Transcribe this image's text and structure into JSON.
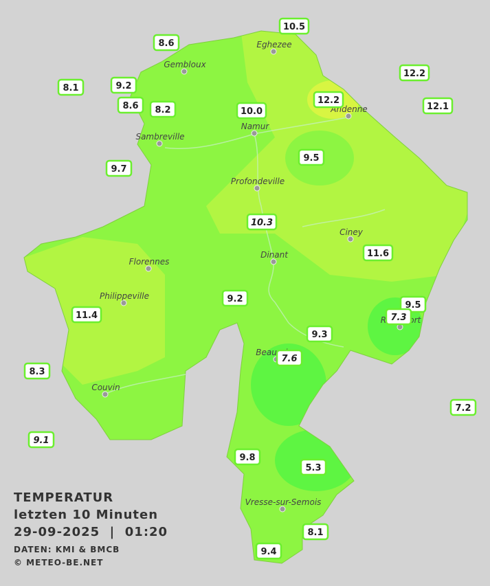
{
  "title": {
    "lines": [
      "TEMPERATUR",
      "letzten 10 Minuten",
      "29-09-2025  |  01:20"
    ]
  },
  "credits": [
    "DATEN: KMI & BMCB",
    "© METEO-BE.NET"
  ],
  "cities": [
    "Eghezee",
    "Gembloux",
    "Andenne",
    "Namur",
    "Sambreville",
    "Profondeville",
    "Ciney",
    "Dinant",
    "Florennes",
    "Philippeville",
    "Rochefort",
    "Beauraing",
    "Couvin",
    "Vresse-sur-Semois"
  ],
  "stations": [
    {
      "text": "10.5",
      "italic": false
    },
    {
      "text": "8.6",
      "italic": false
    },
    {
      "text": "12.2",
      "italic": false
    },
    {
      "text": "8.1",
      "italic": false
    },
    {
      "text": "9.2",
      "italic": false
    },
    {
      "text": "12.2",
      "italic": false
    },
    {
      "text": "12.1",
      "italic": false
    },
    {
      "text": "8.6",
      "italic": false
    },
    {
      "text": "8.2",
      "italic": false
    },
    {
      "text": "10.0",
      "italic": false
    },
    {
      "text": "9.5",
      "italic": false
    },
    {
      "text": "9.7",
      "italic": false
    },
    {
      "text": "10.3",
      "italic": true
    },
    {
      "text": "11.6",
      "italic": false
    },
    {
      "text": "9.2",
      "italic": false
    },
    {
      "text": "9.5",
      "italic": false
    },
    {
      "text": "11.4",
      "italic": false
    },
    {
      "text": "7.3",
      "italic": true
    },
    {
      "text": "9.3",
      "italic": false
    },
    {
      "text": "7.6",
      "italic": true
    },
    {
      "text": "8.3",
      "italic": false
    },
    {
      "text": "7.2",
      "italic": false
    },
    {
      "text": "9.1",
      "italic": true
    },
    {
      "text": "9.8",
      "italic": false
    },
    {
      "text": "5.3",
      "italic": false
    },
    {
      "text": "8.1",
      "italic": false
    },
    {
      "text": "9.4",
      "italic": false
    }
  ]
}
